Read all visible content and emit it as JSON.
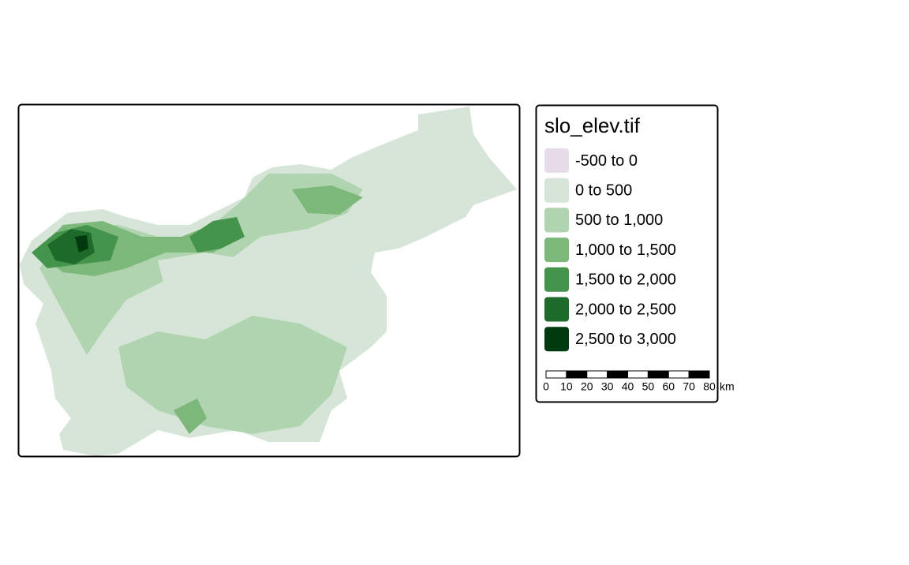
{
  "legend": {
    "title": "slo_elev.tif",
    "items": [
      {
        "label": "-500 to 0",
        "color": "#e7dcea"
      },
      {
        "label": "0 to 500",
        "color": "#d6e5d7"
      },
      {
        "label": "500 to 1,000",
        "color": "#b1d4b0"
      },
      {
        "label": "1,000 to 1,500",
        "color": "#7db87b"
      },
      {
        "label": "1,500 to 2,000",
        "color": "#44944b"
      },
      {
        "label": "2,000 to 2,500",
        "color": "#1d6a2b"
      },
      {
        "label": "2,500 to 3,000",
        "color": "#003a0e"
      }
    ]
  },
  "scale_bar": {
    "ticks": [
      "0",
      "10",
      "20",
      "30",
      "40",
      "50",
      "60",
      "70",
      "80"
    ],
    "unit": "km"
  }
}
